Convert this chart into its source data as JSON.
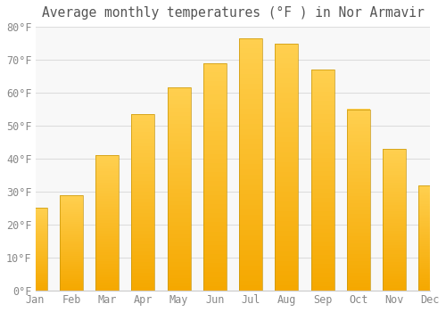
{
  "title": "Average monthly temperatures (°F ) in Nor Armavir",
  "months": [
    "Jan",
    "Feb",
    "Mar",
    "Apr",
    "May",
    "Jun",
    "Jul",
    "Aug",
    "Sep",
    "Oct",
    "Nov",
    "Dec"
  ],
  "values": [
    25,
    29,
    41,
    53.5,
    61.5,
    69,
    76.5,
    75,
    67,
    55,
    43,
    32
  ],
  "bar_color_top": "#FFD050",
  "bar_color_bottom": "#F5A800",
  "bar_edge_color": "#C8960A",
  "background_color": "#FFFFFF",
  "plot_bg_color": "#F8F8F8",
  "grid_color": "#DDDDDD",
  "text_color": "#888888",
  "title_color": "#555555",
  "ylim": [
    0,
    80
  ],
  "yticks": [
    0,
    10,
    20,
    30,
    40,
    50,
    60,
    70,
    80
  ],
  "title_fontsize": 10.5,
  "tick_fontsize": 8.5
}
